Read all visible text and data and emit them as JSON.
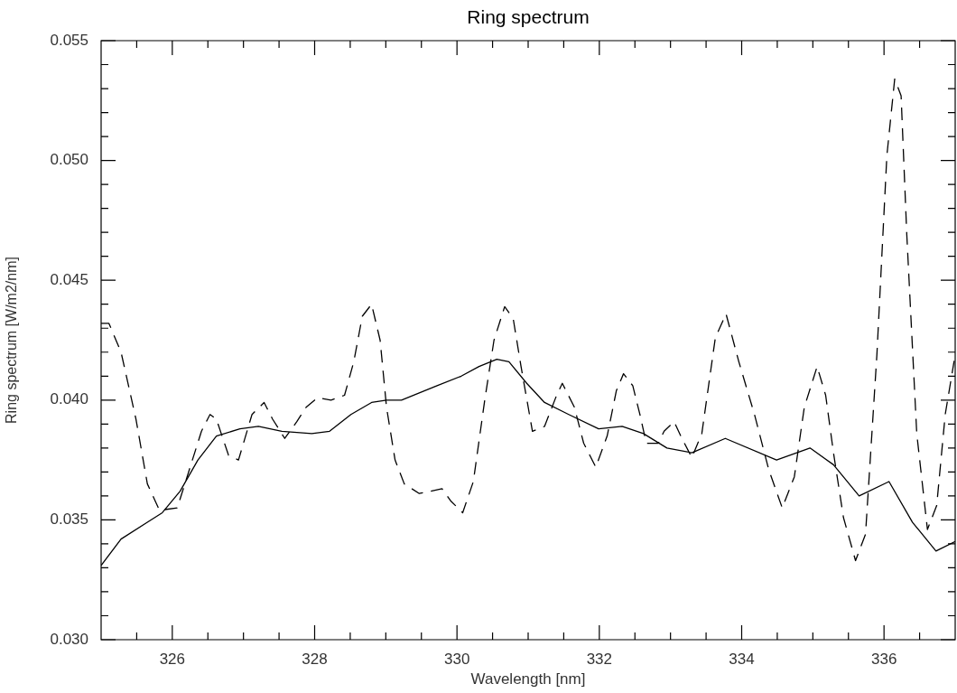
{
  "chart_data": {
    "type": "line",
    "title": "Ring spectrum",
    "xlabel": "Wavelength [nm]",
    "ylabel": "Ring spectrum [W/m2/nm]",
    "xlim": [
      325,
      337
    ],
    "ylim": [
      0.03,
      0.055
    ],
    "xticks": [
      {
        "value": 325.5,
        "label": null
      },
      326,
      {
        "value": 326.5,
        "label": null
      },
      {
        "value": 327,
        "label": null
      },
      {
        "value": 327.5,
        "label": null
      },
      328,
      {
        "value": 328.5,
        "label": null
      },
      {
        "value": 329,
        "label": null
      },
      {
        "value": 329.5,
        "label": null
      },
      330,
      {
        "value": 330.5,
        "label": null
      },
      {
        "value": 331,
        "label": null
      },
      {
        "value": 331.5,
        "label": null
      },
      332,
      {
        "value": 332.5,
        "label": null
      },
      {
        "value": 333,
        "label": null
      },
      {
        "value": 333.5,
        "label": null
      },
      334,
      {
        "value": 334.5,
        "label": null
      },
      {
        "value": 335,
        "label": null
      },
      {
        "value": 335.5,
        "label": null
      },
      336,
      {
        "value": 336.5,
        "label": null
      }
    ],
    "yticks": [
      {
        "value": 0.03,
        "label": "0.030"
      },
      {
        "value": 0.031,
        "label": null
      },
      {
        "value": 0.032,
        "label": null
      },
      {
        "value": 0.033,
        "label": null
      },
      {
        "value": 0.034,
        "label": null
      },
      {
        "value": 0.035,
        "label": "0.035"
      },
      {
        "value": 0.036,
        "label": null
      },
      {
        "value": 0.037,
        "label": null
      },
      {
        "value": 0.038,
        "label": null
      },
      {
        "value": 0.039,
        "label": null
      },
      {
        "value": 0.04,
        "label": "0.040"
      },
      {
        "value": 0.041,
        "label": null
      },
      {
        "value": 0.042,
        "label": null
      },
      {
        "value": 0.043,
        "label": null
      },
      {
        "value": 0.044,
        "label": null
      },
      {
        "value": 0.045,
        "label": "0.045"
      },
      {
        "value": 0.046,
        "label": null
      },
      {
        "value": 0.047,
        "label": null
      },
      {
        "value": 0.048,
        "label": null
      },
      {
        "value": 0.049,
        "label": null
      },
      {
        "value": 0.05,
        "label": "0.050"
      },
      {
        "value": 0.051,
        "label": null
      },
      {
        "value": 0.052,
        "label": null
      },
      {
        "value": 0.053,
        "label": null
      },
      {
        "value": 0.054,
        "label": null
      },
      {
        "value": 0.055,
        "label": "0.055"
      }
    ],
    "grid": false,
    "legend": false,
    "marker": "none",
    "series": [
      {
        "color": "#000000",
        "line_style": "solid",
        "x": [
          325.0,
          325.28,
          325.65,
          325.86,
          326.11,
          326.36,
          326.62,
          326.95,
          327.21,
          327.54,
          327.96,
          328.21,
          328.51,
          328.8,
          329.01,
          329.22,
          329.72,
          330.06,
          330.31,
          330.56,
          330.73,
          330.98,
          331.23,
          331.57,
          331.99,
          332.32,
          332.62,
          332.95,
          333.3,
          333.77,
          334.49,
          334.96,
          335.29,
          335.65,
          336.07,
          336.4,
          336.73,
          337.0
        ],
        "values": [
          0.0331,
          0.0342,
          0.0349,
          0.0353,
          0.0362,
          0.0375,
          0.0385,
          0.0388,
          0.0389,
          0.0387,
          0.0386,
          0.0387,
          0.0394,
          0.0399,
          0.04,
          0.04,
          0.0406,
          0.041,
          0.0414,
          0.0417,
          0.0416,
          0.0407,
          0.0399,
          0.0394,
          0.0388,
          0.0389,
          0.0386,
          0.038,
          0.0378,
          0.0384,
          0.0375,
          0.038,
          0.0373,
          0.036,
          0.0366,
          0.0349,
          0.0337,
          0.0341
        ]
      },
      {
        "color": "#000000",
        "line_style": "dashed",
        "x": [
          325.0,
          325.11,
          325.28,
          325.49,
          325.65,
          325.82,
          326.07,
          326.24,
          326.41,
          326.53,
          326.62,
          326.79,
          326.93,
          327.12,
          327.29,
          327.41,
          327.58,
          327.75,
          327.88,
          328.04,
          328.23,
          328.42,
          328.55,
          328.67,
          328.8,
          328.92,
          329.01,
          329.13,
          329.26,
          329.47,
          329.79,
          329.91,
          330.08,
          330.23,
          330.39,
          330.52,
          330.67,
          330.79,
          330.9,
          331.06,
          331.23,
          331.4,
          331.48,
          331.65,
          331.78,
          331.95,
          332.11,
          332.24,
          332.34,
          332.47,
          332.57,
          332.66,
          332.83,
          332.91,
          333.05,
          333.16,
          333.3,
          333.44,
          333.63,
          333.78,
          333.96,
          334.18,
          334.38,
          334.57,
          334.74,
          334.88,
          335.06,
          335.18,
          335.29,
          335.43,
          335.6,
          335.74,
          335.9,
          336.04,
          336.15,
          336.24,
          336.32,
          336.46,
          336.61,
          336.74,
          336.86,
          337.0
        ],
        "values": [
          0.0432,
          0.0432,
          0.042,
          0.0392,
          0.0365,
          0.0354,
          0.0355,
          0.0371,
          0.0387,
          0.0394,
          0.0392,
          0.0377,
          0.0375,
          0.0394,
          0.0399,
          0.0392,
          0.0384,
          0.0391,
          0.0397,
          0.0401,
          0.04,
          0.0402,
          0.0416,
          0.0435,
          0.044,
          0.0425,
          0.0397,
          0.0375,
          0.0365,
          0.0361,
          0.0363,
          0.0358,
          0.0353,
          0.0366,
          0.04,
          0.0425,
          0.0439,
          0.0434,
          0.0414,
          0.0387,
          0.0389,
          0.0402,
          0.0407,
          0.0397,
          0.0382,
          0.0372,
          0.0385,
          0.0404,
          0.0411,
          0.0406,
          0.0394,
          0.0382,
          0.0382,
          0.0387,
          0.0391,
          0.0384,
          0.0376,
          0.0386,
          0.0426,
          0.0436,
          0.0416,
          0.0394,
          0.0371,
          0.0355,
          0.0368,
          0.0397,
          0.0414,
          0.0402,
          0.0378,
          0.0351,
          0.0333,
          0.0344,
          0.0419,
          0.0502,
          0.0534,
          0.0527,
          0.0469,
          0.0386,
          0.0346,
          0.0356,
          0.0394,
          0.0419
        ]
      }
    ]
  }
}
